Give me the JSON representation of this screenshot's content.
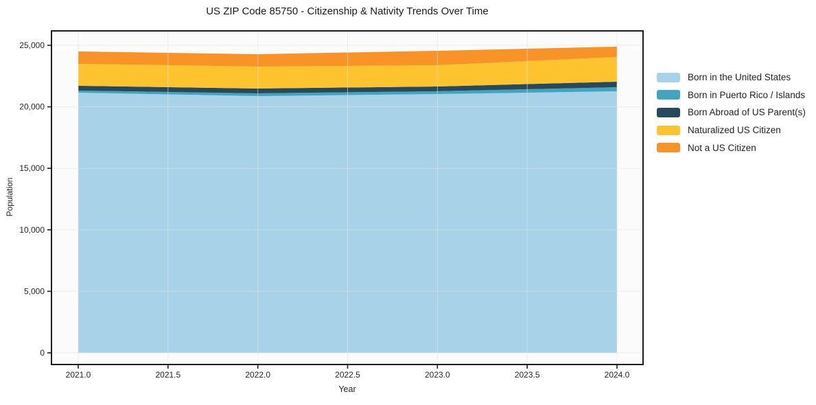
{
  "chart_data": {
    "type": "area",
    "stacked": true,
    "title": "US ZIP Code 85750 - Citizenship & Nativity Trends Over Time",
    "xlabel": "Year",
    "ylabel": "Population",
    "x": [
      2021,
      2022,
      2023,
      2024
    ],
    "series": [
      {
        "name": "Born in the United States",
        "color": "#a7d2e8",
        "values": [
          21150,
          20870,
          21040,
          21260
        ]
      },
      {
        "name": "Born in Puerto Rico / Islands",
        "color": "#42a5c0",
        "values": [
          170,
          225,
          225,
          335
        ]
      },
      {
        "name": "Born Abroad of US Parent(s)",
        "color": "#28495c",
        "values": [
          390,
          390,
          390,
          445
        ]
      },
      {
        "name": "Naturalized US Citizen",
        "color": "#fdc42f",
        "values": [
          1785,
          1785,
          1730,
          2010
        ]
      },
      {
        "name": "Not a US Citizen",
        "color": "#f79327",
        "values": [
          1005,
          1005,
          1170,
          840
        ]
      }
    ],
    "totals": [
      24500,
      24275,
      24555,
      24890
    ],
    "x_tick_values": [
      2021.0,
      2021.5,
      2022.0,
      2022.5,
      2023.0,
      2023.5,
      2024.0
    ],
    "x_tick_labels": [
      "2021.0",
      "2021.5",
      "2022.0",
      "2022.5",
      "2023.0",
      "2023.5",
      "2024.0"
    ],
    "y_tick_values": [
      0,
      5000,
      10000,
      15000,
      20000,
      25000
    ],
    "y_tick_labels": [
      "0",
      "5,000",
      "10,000",
      "15,000",
      "20,000",
      "25,000"
    ],
    "ylim": [
      0,
      25000
    ],
    "xlim": [
      2020.85,
      2024.15
    ],
    "grid": true,
    "legend_position": "right",
    "colors": {
      "plot_background": "#fbfbfb",
      "grid_line": "#e3e3e3",
      "frame": "#1c1c1c",
      "tick": "#1c1c1c"
    }
  }
}
